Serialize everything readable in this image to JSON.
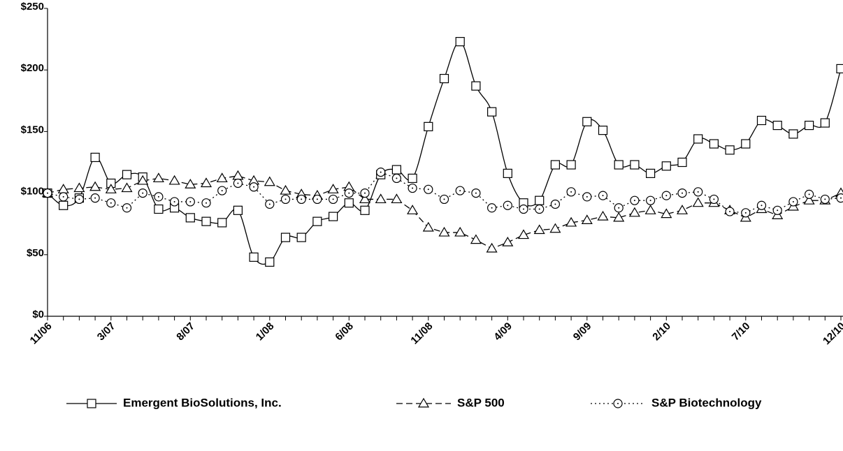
{
  "chart_data": {
    "type": "line",
    "categories": [
      "11/06",
      null,
      null,
      null,
      "3/07",
      null,
      null,
      null,
      null,
      "8/07",
      null,
      null,
      null,
      null,
      "1/08",
      null,
      null,
      null,
      null,
      "6/08",
      null,
      null,
      null,
      null,
      "11/08",
      null,
      null,
      null,
      null,
      "4/09",
      null,
      null,
      null,
      null,
      "9/09",
      null,
      null,
      null,
      null,
      "2/10",
      null,
      null,
      null,
      null,
      "7/10",
      null,
      null,
      null,
      null,
      null,
      "12/10"
    ],
    "series": [
      {
        "name": "Emergent BioSolutions, Inc.",
        "color": "#000000",
        "dash": "solid",
        "marker": "square",
        "smooth": true,
        "values": [
          100,
          90,
          96,
          129,
          108,
          115,
          113,
          87,
          88,
          80,
          77,
          76,
          86,
          48,
          44,
          64,
          64,
          77,
          81,
          92,
          86,
          115,
          119,
          112,
          154,
          193,
          223,
          187,
          166,
          116,
          92,
          94,
          123,
          123,
          158,
          151,
          123,
          123,
          116,
          122,
          125,
          144,
          140,
          135,
          140,
          159,
          155,
          148,
          155,
          157,
          201
        ]
      },
      {
        "name": "S&P 500",
        "color": "#000000",
        "dash": "dashed",
        "marker": "triangle",
        "smooth": false,
        "values": [
          100,
          103,
          104,
          105,
          103,
          104,
          110,
          112,
          110,
          107,
          108,
          112,
          114,
          110,
          109,
          102,
          99,
          98,
          103,
          105,
          95,
          95,
          95,
          86,
          72,
          68,
          68,
          62,
          55,
          60,
          66,
          70,
          71,
          76,
          78,
          81,
          80,
          84,
          86,
          83,
          86,
          92,
          92,
          86,
          80,
          87,
          82,
          89,
          94,
          94,
          100
        ]
      },
      {
        "name": "S&P Biotechnology",
        "color": "#000000",
        "dash": "dotted",
        "marker": "circle",
        "smooth": false,
        "values": [
          100,
          97,
          95,
          96,
          92,
          88,
          100,
          97,
          93,
          93,
          92,
          102,
          108,
          105,
          91,
          95,
          95,
          95,
          95,
          100,
          100,
          117,
          112,
          104,
          103,
          95,
          102,
          100,
          88,
          90,
          87,
          87,
          91,
          101,
          97,
          98,
          88,
          94,
          94,
          98,
          100,
          101,
          95,
          85,
          84,
          90,
          86,
          93,
          99,
          95,
          96
        ]
      }
    ],
    "ylim": [
      0,
      250
    ],
    "yticks": [
      {
        "value": 0,
        "label": "$0"
      },
      {
        "value": 50,
        "label": "$50"
      },
      {
        "value": 100,
        "label": "$100"
      },
      {
        "value": 150,
        "label": "$150"
      },
      {
        "value": 200,
        "label": "$200"
      },
      {
        "value": 250,
        "label": "$250"
      }
    ],
    "grid": false
  }
}
